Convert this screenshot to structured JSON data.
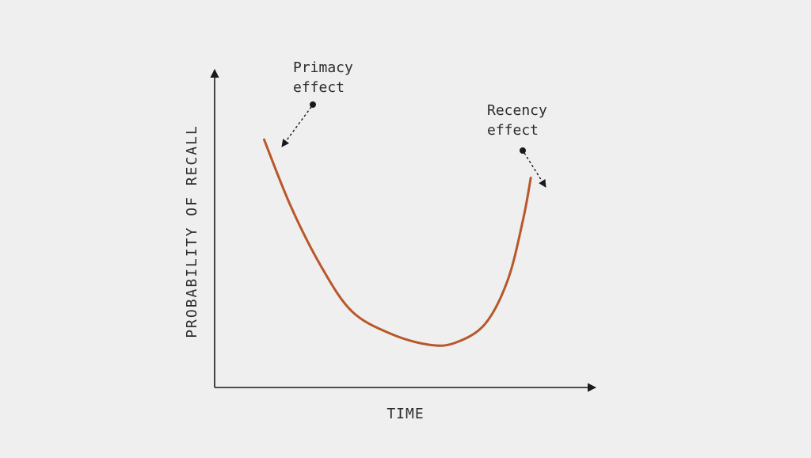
{
  "chart_data": {
    "type": "line",
    "xlabel": "TIME",
    "ylabel": "PROBABILITY OF RECALL",
    "x_ticks": "none",
    "y_ticks": "none",
    "grid": false,
    "series": [
      {
        "values_description": "U-shaped serial position curve",
        "color": "#b8582a",
        "points": [
          {
            "x": 0.13,
            "y": 0.78
          },
          {
            "x": 0.2,
            "y": 0.57
          },
          {
            "x": 0.28,
            "y": 0.38
          },
          {
            "x": 0.36,
            "y": 0.24
          },
          {
            "x": 0.46,
            "y": 0.17
          },
          {
            "x": 0.56,
            "y": 0.135
          },
          {
            "x": 0.63,
            "y": 0.14
          },
          {
            "x": 0.71,
            "y": 0.2
          },
          {
            "x": 0.77,
            "y": 0.34
          },
          {
            "x": 0.81,
            "y": 0.53
          },
          {
            "x": 0.83,
            "y": 0.66
          }
        ]
      }
    ],
    "annotations": [
      {
        "id": "primacy",
        "lines": [
          "Primacy",
          "effect"
        ]
      },
      {
        "id": "recency",
        "lines": [
          "Recency",
          "effect"
        ]
      }
    ]
  }
}
